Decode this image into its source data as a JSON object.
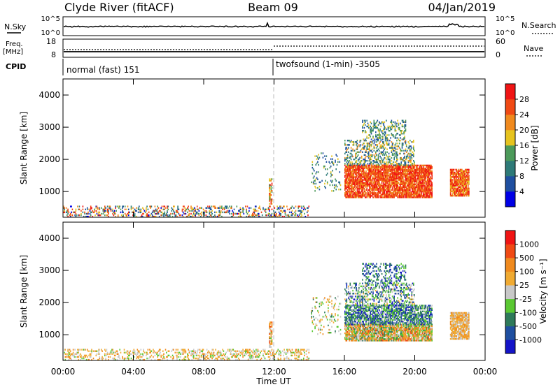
{
  "header": {
    "station": "Clyde River (fitACF)",
    "beam": "Beam 09",
    "date": "04/Jan/2019"
  },
  "top_panels": {
    "nsky_label": "N.Sky",
    "nsky_ticks": [
      "10^5",
      "10^0"
    ],
    "nsearch_label": "N.Search",
    "nsearch_ticks": [
      "10^5",
      "10^0"
    ],
    "freq_label": "Freq.",
    "freq_unit": "[MHz]",
    "freq_ticks": [
      "18",
      "8"
    ],
    "nave_label": "Nave",
    "nave_ticks": [
      "60",
      "0"
    ],
    "cpid_label": "CPID",
    "cpid_segments": [
      {
        "label": "normal (fast) 151",
        "start_hour": 0
      },
      {
        "label": "twofsound (1-min) -3505",
        "start_hour": 12
      }
    ]
  },
  "colors": {
    "power_scale": [
      "#0000e6",
      "#1f4fa0",
      "#2e7a78",
      "#4c9a5a",
      "#e6c31e",
      "#f08a1e",
      "#f04a14",
      "#f01414"
    ],
    "velocity_scale": [
      "#f01414",
      "#f04a14",
      "#f08a1e",
      "#f0aa32",
      "#c8c8c8",
      "#5ac832",
      "#2e7a5a",
      "#1f4fa0",
      "#1414c8"
    ]
  },
  "chart_data": [
    {
      "type": "heatmap",
      "panel": "power",
      "ylabel": "Slant Range [km]",
      "yticks": [
        "1000",
        "2000",
        "3000",
        "4000"
      ],
      "ylim": [
        200,
        4500
      ],
      "xlim": [
        0,
        24
      ],
      "colorbar_label": "Power [dB]",
      "colorbar_ticks": [
        "4",
        "8",
        "12",
        "16",
        "20",
        "24",
        "28"
      ],
      "colorbar_range": [
        0,
        32
      ],
      "echo_regions": [
        {
          "t0": 16.0,
          "t1": 21.0,
          "r0": 800,
          "r1": 1800,
          "min": 20,
          "max": 32,
          "density": 0.85
        },
        {
          "t0": 16.0,
          "t1": 20.0,
          "r0": 1800,
          "r1": 2600,
          "min": 4,
          "max": 22,
          "density": 0.35
        },
        {
          "t0": 17.0,
          "t1": 19.5,
          "r0": 2600,
          "r1": 3200,
          "min": 4,
          "max": 20,
          "density": 0.3
        },
        {
          "t0": 22.0,
          "t1": 23.1,
          "r0": 850,
          "r1": 1700,
          "min": 18,
          "max": 32,
          "density": 0.85
        },
        {
          "t0": 14.1,
          "t1": 15.8,
          "r0": 1000,
          "r1": 2200,
          "min": 4,
          "max": 20,
          "density": 0.12
        },
        {
          "t0": 11.7,
          "t1": 11.9,
          "r0": 600,
          "r1": 1400,
          "min": 12,
          "max": 30,
          "density": 0.6
        },
        {
          "t0": 0.0,
          "t1": 14.0,
          "r0": 200,
          "r1": 550,
          "min": 2,
          "max": 30,
          "density": 0.3
        }
      ]
    },
    {
      "type": "heatmap",
      "panel": "velocity",
      "ylabel": "Slant Range [km]",
      "yticks": [
        "1000",
        "2000",
        "3000",
        "4000"
      ],
      "ylim": [
        200,
        4500
      ],
      "xlim": [
        0,
        24
      ],
      "xticks": [
        "00:00",
        "04:00",
        "08:00",
        "12:00",
        "16:00",
        "20:00",
        "00:00"
      ],
      "xlabel": "Time UT",
      "colorbar_label": "Velocity [m s⁻¹]",
      "colorbar_ticks": [
        "-1000",
        "-500",
        "-100",
        "-25",
        "25",
        "100",
        "500",
        "1000"
      ],
      "colorbar_range": [
        -1500,
        1500
      ],
      "echo_regions": [
        {
          "t0": 16.0,
          "t1": 21.0,
          "r0": 800,
          "r1": 1300,
          "min": 1,
          "max": 6,
          "density": 0.85
        },
        {
          "t0": 16.0,
          "t1": 21.0,
          "r0": 1300,
          "r1": 1900,
          "min": 4,
          "max": 8,
          "density": 0.7
        },
        {
          "t0": 16.0,
          "t1": 20.0,
          "r0": 1900,
          "r1": 2600,
          "min": 3,
          "max": 8,
          "density": 0.35
        },
        {
          "t0": 17.0,
          "t1": 19.5,
          "r0": 2600,
          "r1": 3200,
          "min": 5,
          "max": 8,
          "density": 0.3
        },
        {
          "t0": 22.0,
          "t1": 23.1,
          "r0": 850,
          "r1": 1700,
          "min": 2,
          "max": 4,
          "density": 0.85
        },
        {
          "t0": 14.1,
          "t1": 15.8,
          "r0": 1000,
          "r1": 2200,
          "min": 2,
          "max": 6,
          "density": 0.12
        },
        {
          "t0": 11.7,
          "t1": 11.9,
          "r0": 600,
          "r1": 1400,
          "min": 1,
          "max": 5,
          "density": 0.6
        },
        {
          "t0": 0.0,
          "t1": 14.0,
          "r0": 200,
          "r1": 550,
          "min": 2,
          "max": 5,
          "density": 0.3
        }
      ]
    }
  ]
}
